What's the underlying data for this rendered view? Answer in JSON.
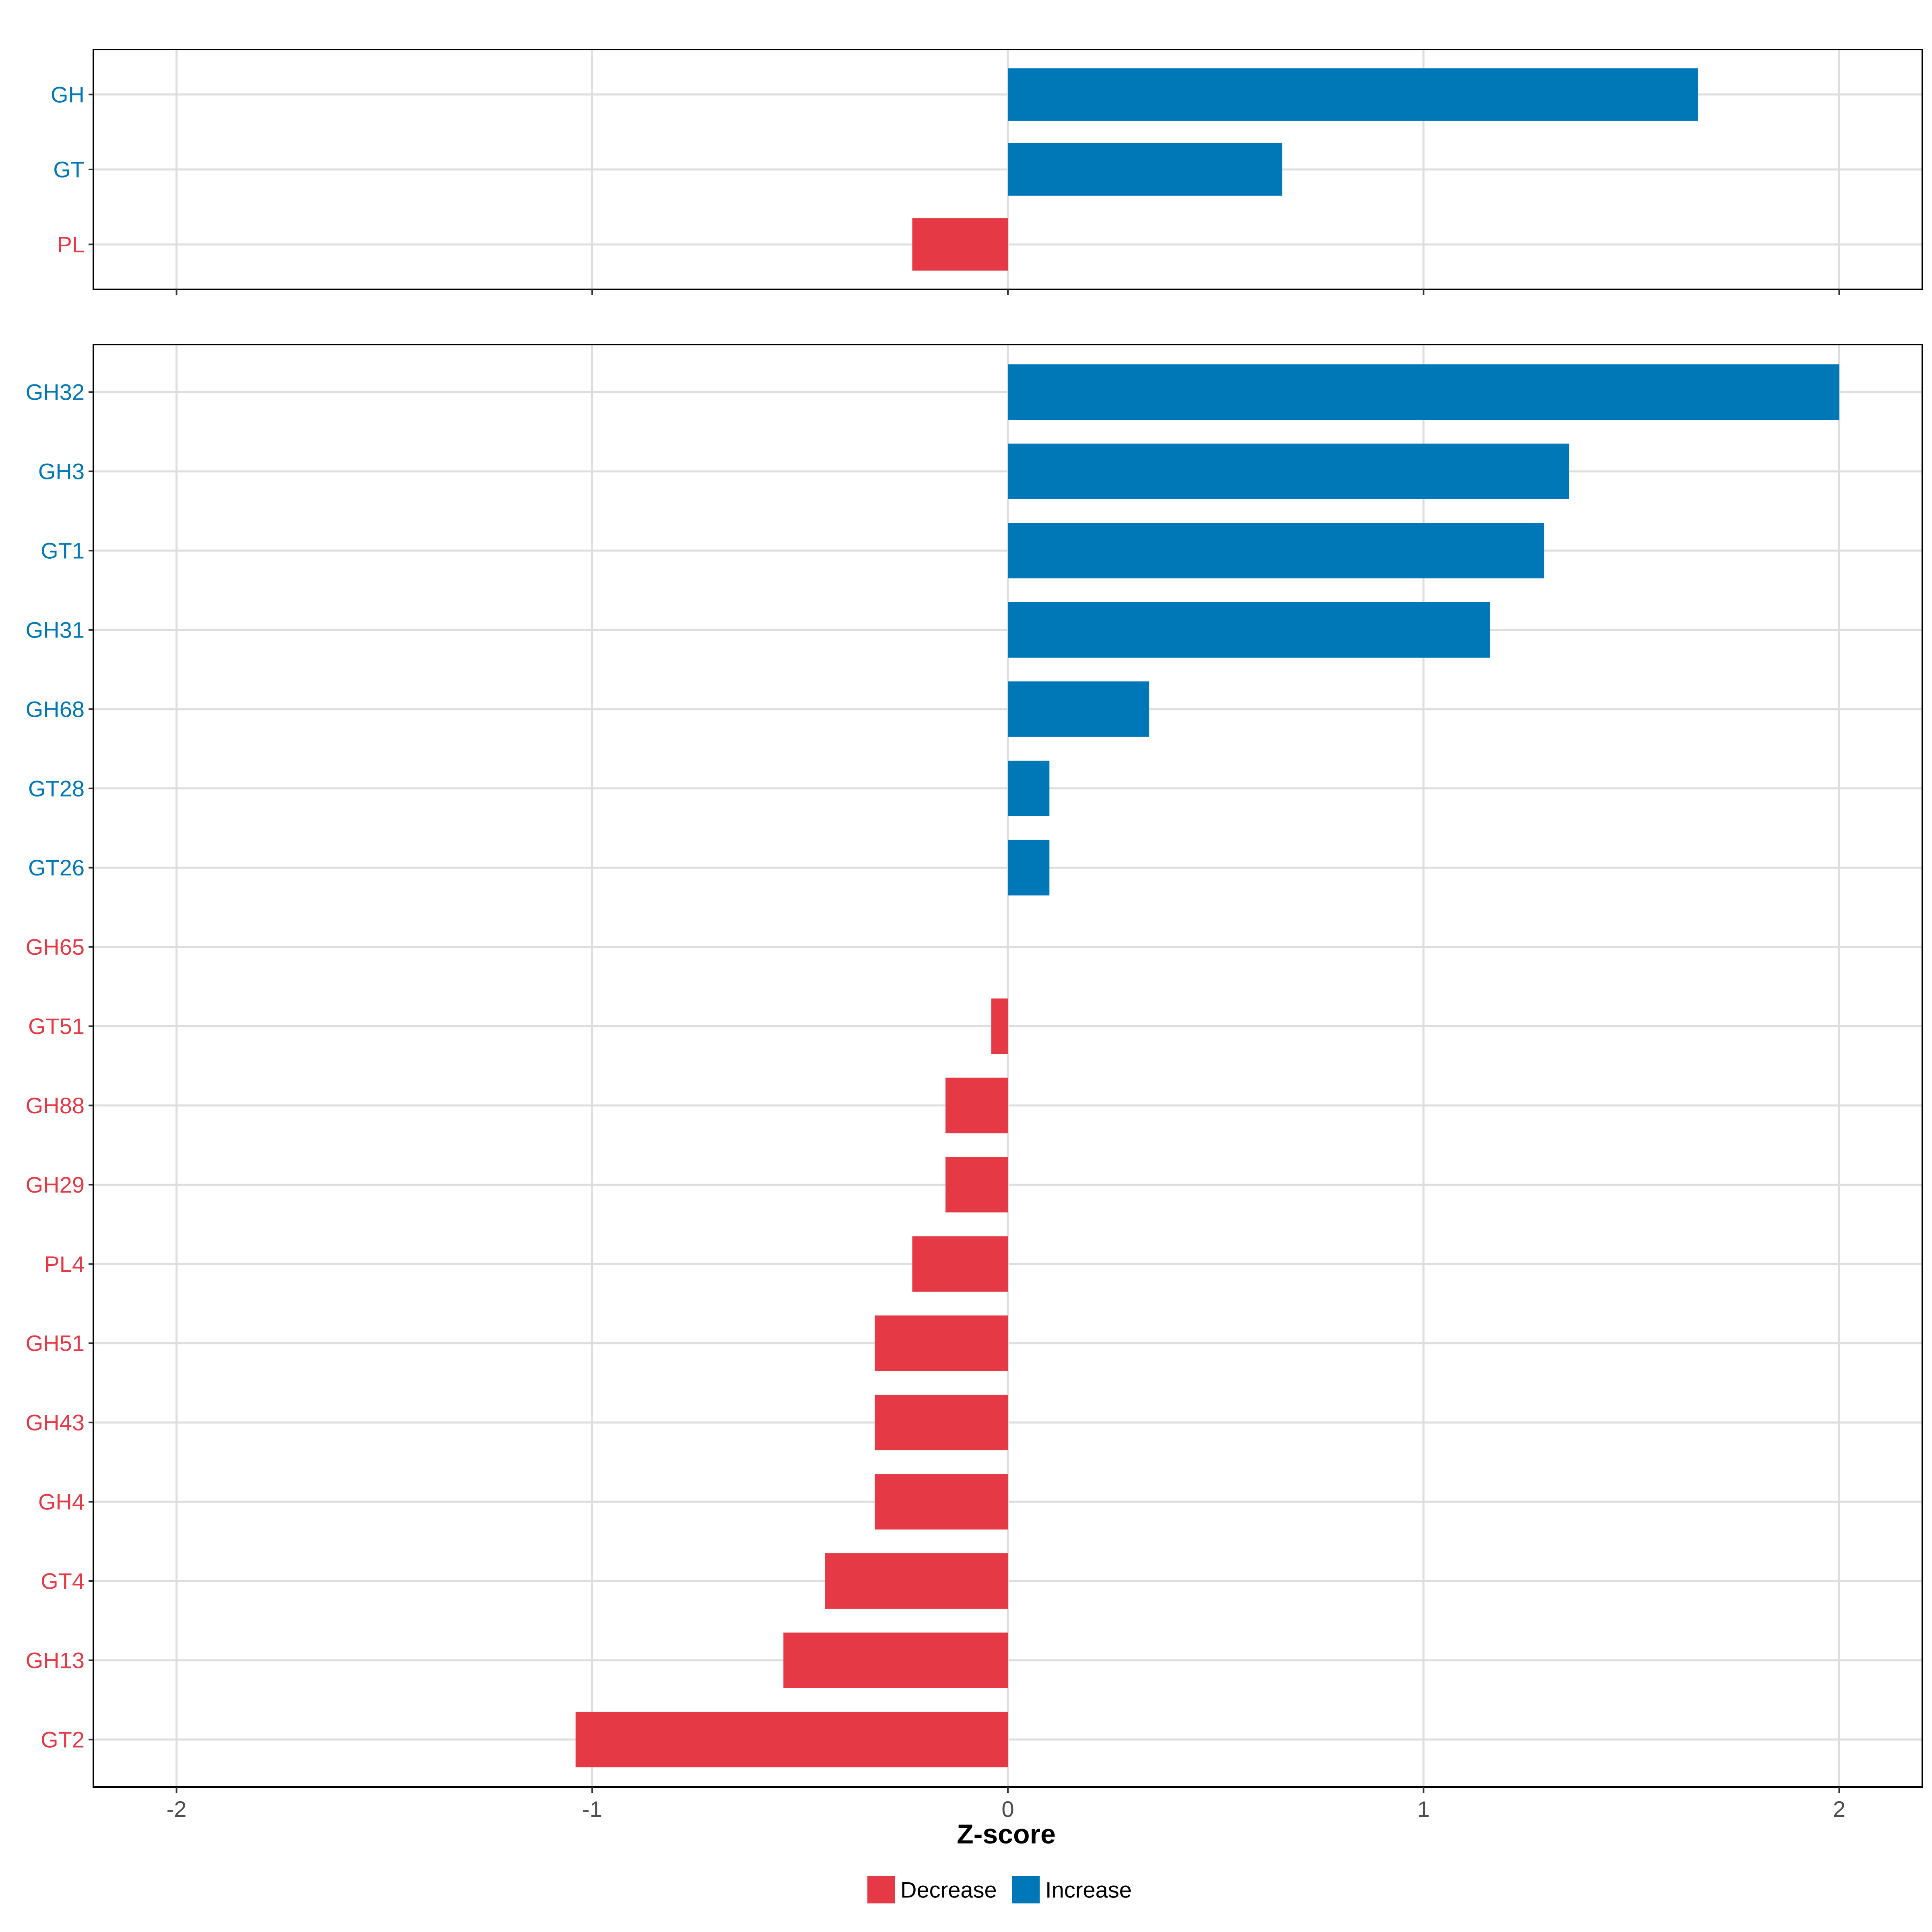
{
  "chart_data": {
    "type": "bar",
    "orientation": "horizontal",
    "xlabel": "Z-score",
    "xlim": [
      -2.2,
      2.2
    ],
    "x_ticks": [
      -2,
      -1,
      0,
      1,
      2
    ],
    "x_tick_labels": [
      "-2",
      "-1",
      "0",
      "1",
      "2"
    ],
    "grid": true,
    "colors": {
      "Decrease": "#E63946",
      "Increase": "#0077B6"
    },
    "legend": {
      "position": "bottom",
      "entries": [
        "Decrease",
        "Increase"
      ]
    },
    "panels": [
      {
        "name": "top-panel",
        "bars": [
          {
            "label": "GH",
            "value": 1.66,
            "direction": "Increase"
          },
          {
            "label": "GT",
            "value": 0.66,
            "direction": "Increase"
          },
          {
            "label": "PL",
            "value": -0.23,
            "direction": "Decrease"
          }
        ]
      },
      {
        "name": "bottom-panel",
        "bars": [
          {
            "label": "GH32",
            "value": 2.0,
            "direction": "Increase"
          },
          {
            "label": "GH3",
            "value": 1.35,
            "direction": "Increase"
          },
          {
            "label": "GT1",
            "value": 1.29,
            "direction": "Increase"
          },
          {
            "label": "GH31",
            "value": 1.16,
            "direction": "Increase"
          },
          {
            "label": "GH68",
            "value": 0.34,
            "direction": "Increase"
          },
          {
            "label": "GT28",
            "value": 0.1,
            "direction": "Increase"
          },
          {
            "label": "GT26",
            "value": 0.1,
            "direction": "Increase"
          },
          {
            "label": "GH65",
            "value": 0.0,
            "direction": "Decrease"
          },
          {
            "label": "GT51",
            "value": -0.04,
            "direction": "Decrease"
          },
          {
            "label": "GH88",
            "value": -0.15,
            "direction": "Decrease"
          },
          {
            "label": "GH29",
            "value": -0.15,
            "direction": "Decrease"
          },
          {
            "label": "PL4",
            "value": -0.23,
            "direction": "Decrease"
          },
          {
            "label": "GH51",
            "value": -0.32,
            "direction": "Decrease"
          },
          {
            "label": "GH43",
            "value": -0.32,
            "direction": "Decrease"
          },
          {
            "label": "GH4",
            "value": -0.32,
            "direction": "Decrease"
          },
          {
            "label": "GT4",
            "value": -0.44,
            "direction": "Decrease"
          },
          {
            "label": "GH13",
            "value": -0.54,
            "direction": "Decrease"
          },
          {
            "label": "GT2",
            "value": -1.04,
            "direction": "Decrease"
          }
        ]
      }
    ]
  }
}
